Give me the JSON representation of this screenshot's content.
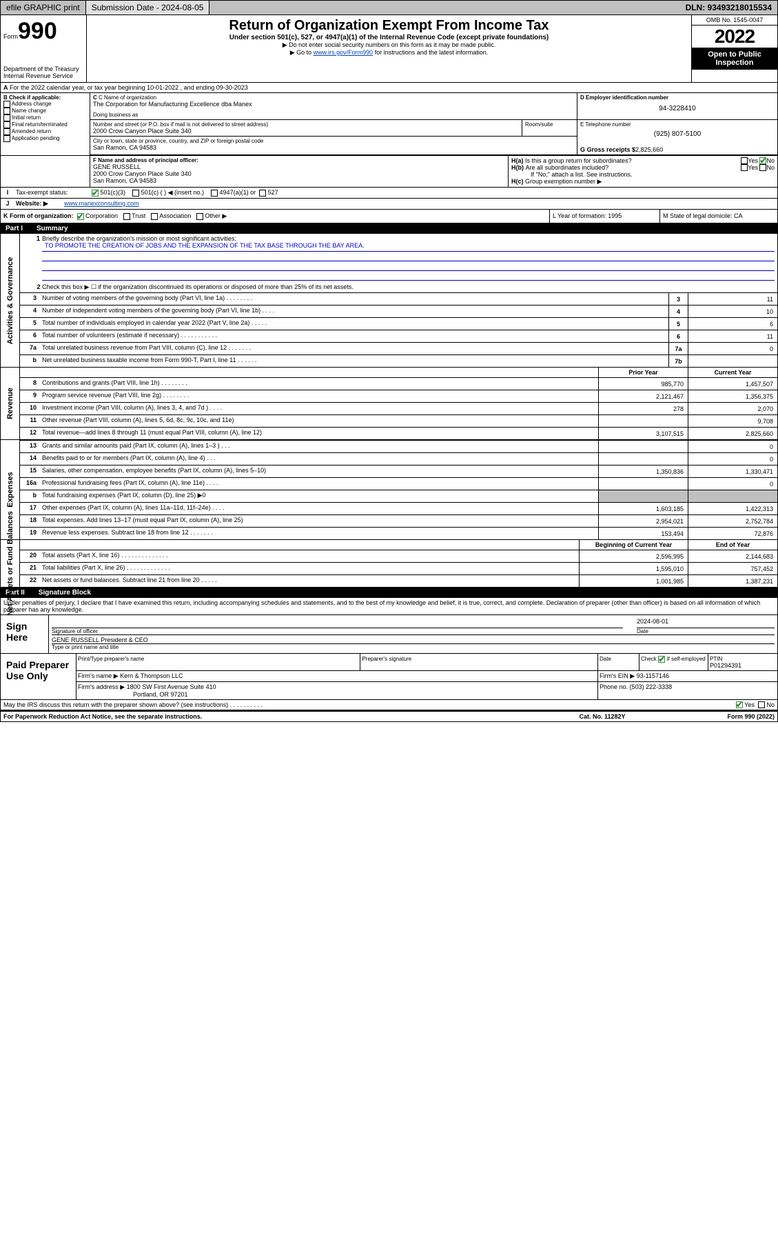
{
  "topbar": {
    "efile": "efile GRAPHIC print",
    "submission_label": "Submission Date - 2024-08-05",
    "dln": "DLN: 93493218015534"
  },
  "header": {
    "form_small": "Form",
    "form_no": "990",
    "dept": "Department of the Treasury",
    "irs": "Internal Revenue Service",
    "title": "Return of Organization Exempt From Income Tax",
    "sub": "Under section 501(c), 527, or 4947(a)(1) of the Internal Revenue Code (except private foundations)",
    "note1": "▶ Do not enter social security numbers on this form as it may be made public.",
    "note2_pre": "▶ Go to ",
    "note2_link": "www.irs.gov/Form990",
    "note2_post": " for instructions and the latest information.",
    "omb": "OMB No. 1545-0047",
    "year": "2022",
    "open": "Open to Public Inspection"
  },
  "A": {
    "text": "For the 2022 calendar year, or tax year beginning 10-01-2022    , and ending 09-30-2023"
  },
  "B": {
    "label": "B Check if applicable:",
    "items": [
      "Address change",
      "Name change",
      "Initial return",
      "Final return/terminated",
      "Amended return",
      "Application pending"
    ]
  },
  "C": {
    "name_lbl": "C Name of organization",
    "name": "The Corporation for Manufacturing Excellence dba Manex",
    "dba_lbl": "Doing business as",
    "dba": "",
    "addr_lbl": "Number and street (or P.O. box if mail is not delivered to street address)",
    "room_lbl": "Room/suite",
    "addr": "2000 Crow Canyon Place Suite 340",
    "city_lbl": "City or town, state or province, country, and ZIP or foreign postal code",
    "city": "San Ramon, CA  94583"
  },
  "D": {
    "lbl": "D Employer identification number",
    "val": "94-3228410"
  },
  "E": {
    "lbl": "E Telephone number",
    "val": "(925) 807-5100"
  },
  "G": {
    "lbl": "G Gross receipts $",
    "val": "2,825,660"
  },
  "F": {
    "lbl": "F  Name and address of principal officer:",
    "name": "GENE RUSSELL",
    "addr1": "2000 Crow Canyon Place Suite 340",
    "addr2": "San Ramon, CA  94583"
  },
  "H": {
    "a": "Is this a group return for subordinates?",
    "b": "Are all subordinates included?",
    "b_note": "If \"No,\" attach a list. See instructions.",
    "c": "Group exemption number ▶",
    "yes": "Yes",
    "no": "No"
  },
  "I": {
    "lbl": "Tax-exempt status:",
    "o1": "501(c)(3)",
    "o2": "501(c) (  ) ◀ (insert no.)",
    "o3": "4947(a)(1) or",
    "o4": "527"
  },
  "J": {
    "lbl": "Website: ▶",
    "val": "www.manexconsulting.com"
  },
  "K": {
    "lbl": "K Form of organization:",
    "corp": "Corporation",
    "trust": "Trust",
    "assoc": "Association",
    "other": "Other ▶"
  },
  "L": {
    "lbl": "L Year of formation: 1995"
  },
  "M": {
    "lbl": "M State of legal domicile: CA"
  },
  "part1": {
    "label": "Part I",
    "title": "Summary"
  },
  "gov": {
    "l1": "Briefly describe the organization's mission or most significant activities:",
    "mission": "TO PROMOTE THE CREATION OF JOBS AND THE EXPANSION OF THE TAX BASE THROUGH THE BAY AREA.",
    "l2": "Check this box ▶ ☐  if the organization discontinued its operations or disposed of more than 25% of its net assets.",
    "rows": [
      {
        "n": "3",
        "d": "Number of voting members of the governing body (Part VI, line 1a)   .    .    .    .    .    .    .    .",
        "b": "3",
        "v": "11"
      },
      {
        "n": "4",
        "d": "Number of independent voting members of the governing body (Part VI, line 1b)   .    .    .    .",
        "b": "4",
        "v": "10"
      },
      {
        "n": "5",
        "d": "Total number of individuals employed in calendar year 2022 (Part V, line 2a)   .    .    .    .    .",
        "b": "5",
        "v": "6"
      },
      {
        "n": "6",
        "d": "Total number of volunteers (estimate if necessary)   .    .    .    .    .    .    .    .    .    .    .",
        "b": "6",
        "v": "11"
      },
      {
        "n": "7a",
        "d": "Total unrelated business revenue from Part VIII, column (C), line 12   .    .    .    .    .    .    .",
        "b": "7a",
        "v": "0"
      },
      {
        "n": "b",
        "d": "Net unrelated business taxable income from Form 990-T, Part I, line 11   .    .    .    .    .    .",
        "b": "7b",
        "v": ""
      }
    ]
  },
  "hdr": {
    "py": "Prior Year",
    "cy": "Current Year"
  },
  "rev": [
    {
      "n": "8",
      "d": "Contributions and grants (Part VIII, line 1h)   .    .    .    .    .    .    .    .",
      "p": "985,770",
      "c": "1,457,507"
    },
    {
      "n": "9",
      "d": "Program service revenue (Part VIII, line 2g)   .    .    .    .    .    .    .    .",
      "p": "2,121,467",
      "c": "1,356,375"
    },
    {
      "n": "10",
      "d": "Investment income (Part VIII, column (A), lines 3, 4, and 7d )   .    .    .    .",
      "p": "278",
      "c": "2,070"
    },
    {
      "n": "11",
      "d": "Other revenue (Part VIII, column (A), lines 5, 6d, 8c, 9c, 10c, and 11e)",
      "p": "",
      "c": "9,708"
    },
    {
      "n": "12",
      "d": "Total revenue—add lines 8 through 11 (must equal Part VIII, column (A), line 12)",
      "p": "3,107,515",
      "c": "2,825,660"
    }
  ],
  "exp": [
    {
      "n": "13",
      "d": "Grants and similar amounts paid (Part IX, column (A), lines 1–3 )   .    .    .",
      "p": "",
      "c": "0"
    },
    {
      "n": "14",
      "d": "Benefits paid to or for members (Part IX, column (A), line 4)   .    .    .",
      "p": "",
      "c": "0"
    },
    {
      "n": "15",
      "d": "Salaries, other compensation, employee benefits (Part IX, column (A), lines 5–10)",
      "p": "1,350,836",
      "c": "1,330,471"
    },
    {
      "n": "16a",
      "d": "Professional fundraising fees (Part IX, column (A), line 11e)   .    .    .    .",
      "p": "",
      "c": "0"
    },
    {
      "n": "b",
      "d": "Total fundraising expenses (Part IX, column (D), line 25) ▶0",
      "p": "grey",
      "c": "grey"
    },
    {
      "n": "17",
      "d": "Other expenses (Part IX, column (A), lines 11a–11d, 11f–24e)   .    .    .    .",
      "p": "1,603,185",
      "c": "1,422,313"
    },
    {
      "n": "18",
      "d": "Total expenses. Add lines 13–17 (must equal Part IX, column (A), line 25)",
      "p": "2,954,021",
      "c": "2,752,784"
    },
    {
      "n": "19",
      "d": "Revenue less expenses. Subtract line 18 from line 12   .    .    .    .    .    .    .",
      "p": "153,494",
      "c": "72,876"
    }
  ],
  "hdr2": {
    "py": "Beginning of Current Year",
    "cy": "End of Year"
  },
  "na": [
    {
      "n": "20",
      "d": "Total assets (Part X, line 16)   .    .    .    .    .    .    .    .    .    .    .    .    .    .",
      "p": "2,596,995",
      "c": "2,144,683"
    },
    {
      "n": "21",
      "d": "Total liabilities (Part X, line 26)   .    .    .    .    .    .    .    .    .    .    .    .    .",
      "p": "1,595,010",
      "c": "757,452"
    },
    {
      "n": "22",
      "d": "Net assets or fund balances. Subtract line 21 from line 20   .    .    .    .    .",
      "p": "1,001,985",
      "c": "1,387,231"
    }
  ],
  "part2": {
    "label": "Part II",
    "title": "Signature Block"
  },
  "perjury": "Under penalties of perjury, I declare that I have examined this return, including accompanying schedules and statements, and to the best of my knowledge and belief, it is true, correct, and complete. Declaration of preparer (other than officer) is based on all information of which preparer has any knowledge.",
  "sign": {
    "here": "Sign Here",
    "sigoff": "Signature of officer",
    "date": "Date",
    "date_val": "2024-08-01",
    "name": "GENE RUSSELL President & CEO",
    "name_lbl": "Type or print name and title"
  },
  "paid": {
    "label": "Paid Preparer Use Only",
    "h1": "Print/Type preparer's name",
    "h2": "Preparer's signature",
    "h3": "Date",
    "h4_pre": "Check",
    "h4_post": "if self-employed",
    "h5": "PTIN",
    "ptin": "P01294391",
    "firm_lbl": "Firm's name    ▶",
    "firm": "Kern & Thompson LLC",
    "ein_lbl": "Firm's EIN ▶",
    "ein": "93-1157146",
    "addr_lbl": "Firm's address ▶",
    "addr1": "1800 SW First Avenue Suite 410",
    "addr2": "Portland, OR  97201",
    "ph_lbl": "Phone no.",
    "ph": "(503) 222-3338"
  },
  "discuss": {
    "q": "May the IRS discuss this return with the preparer shown above? (see instructions)   .    .    .    .    .    .    .    .    .    .",
    "yes": "Yes",
    "no": "No"
  },
  "foot": {
    "l": "For Paperwork Reduction Act Notice, see the separate instructions.",
    "m": "Cat. No. 11282Y",
    "r": "Form 990 (2022)"
  }
}
